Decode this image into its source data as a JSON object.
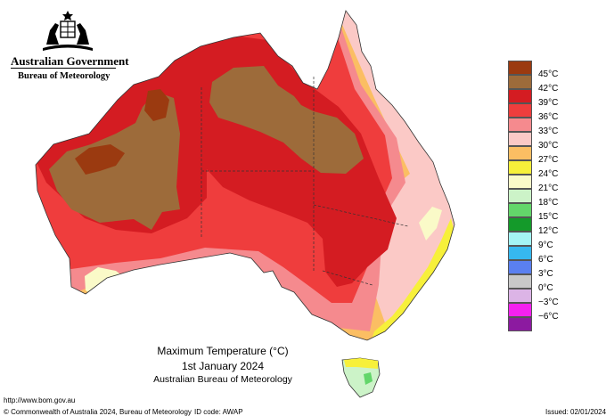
{
  "branding": {
    "government": "Australian Government",
    "bureau": "Bureau of Meteorology"
  },
  "legend": [
    {
      "label": "45°C",
      "color": "#9b3a10"
    },
    {
      "label": "42°C",
      "color": "#9d6b3a"
    },
    {
      "label": "39°C",
      "color": "#d41c22"
    },
    {
      "label": "36°C",
      "color": "#ef3d3d"
    },
    {
      "label": "33°C",
      "color": "#f58a8e"
    },
    {
      "label": "30°C",
      "color": "#fbc9c6"
    },
    {
      "label": "27°C",
      "color": "#fbbe63"
    },
    {
      "label": "24°C",
      "color": "#f7f03a"
    },
    {
      "label": "21°C",
      "color": "#fafac8"
    },
    {
      "label": "18°C",
      "color": "#ccf3c8"
    },
    {
      "label": "15°C",
      "color": "#63d66a"
    },
    {
      "label": "12°C",
      "color": "#149a2a"
    },
    {
      "label": "9°C",
      "color": "#a4f4f4"
    },
    {
      "label": "6°C",
      "color": "#36b8ef"
    },
    {
      "label": "3°C",
      "color": "#5a80f0"
    },
    {
      "label": "0°C",
      "color": "#c8c8c8"
    },
    {
      "label": "−3°C",
      "color": "#dcb4e6"
    },
    {
      "label": "−6°C",
      "color": "#f521f0"
    },
    {
      "label": "",
      "color": "#8c1aa0"
    }
  ],
  "title": {
    "line1": "Maximum Temperature (°C)",
    "line2": "1st January 2024",
    "line3": "Australian Bureau of Meteorology"
  },
  "footer": {
    "url": "http://www.bom.gov.au",
    "copyright": "© Commonwealth of Australia 2024, Bureau of Meteorology",
    "id_code": "ID code: AWAP",
    "issued": "Issued: 02/01/2024"
  }
}
